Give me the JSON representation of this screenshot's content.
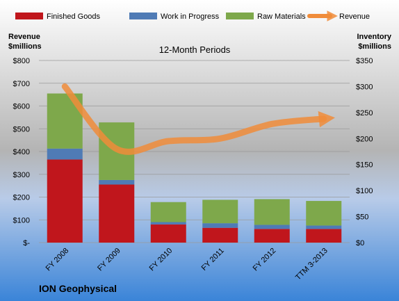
{
  "chart_data": {
    "type": "bar",
    "subtitle": "12-Month Periods",
    "company": "ION Geophysical",
    "categories": [
      "FY 2008",
      "FY 2009",
      "FY 2010",
      "FY 2011",
      "FY 2012",
      "TTM 3-2013"
    ],
    "y_left": {
      "title_line1": "Revenue",
      "title_line2": "$millions",
      "range": [
        0,
        800
      ],
      "ticks": [
        "$-",
        "$100",
        "$200",
        "$300",
        "$400",
        "$500",
        "$600",
        "$700",
        "$800"
      ]
    },
    "y_right": {
      "title_line1": "Inventory",
      "title_line2": "$millions",
      "range": [
        0,
        350
      ],
      "ticks": [
        "$0",
        "$50",
        "$100",
        "$150",
        "$200",
        "$250",
        "$300",
        "$350"
      ]
    },
    "series": [
      {
        "name": "Finished Goods",
        "axis": "left",
        "kind": "bar",
        "color": "#C0161C",
        "values": [
          365,
          255,
          80,
          65,
          60,
          60
        ]
      },
      {
        "name": "Work in Progress",
        "axis": "left",
        "kind": "bar",
        "color": "#4F7BB5",
        "values": [
          48,
          20,
          10,
          20,
          18,
          15
        ]
      },
      {
        "name": "Raw Materials",
        "axis": "left",
        "kind": "bar",
        "color": "#7EA84B",
        "values": [
          242,
          253,
          88,
          103,
          113,
          108
        ]
      },
      {
        "name": "Revenue",
        "axis": "right",
        "kind": "line",
        "color": "#F08C3A",
        "values": [
          300,
          180,
          195,
          200,
          228,
          238
        ]
      }
    ],
    "legend_position": "top"
  }
}
